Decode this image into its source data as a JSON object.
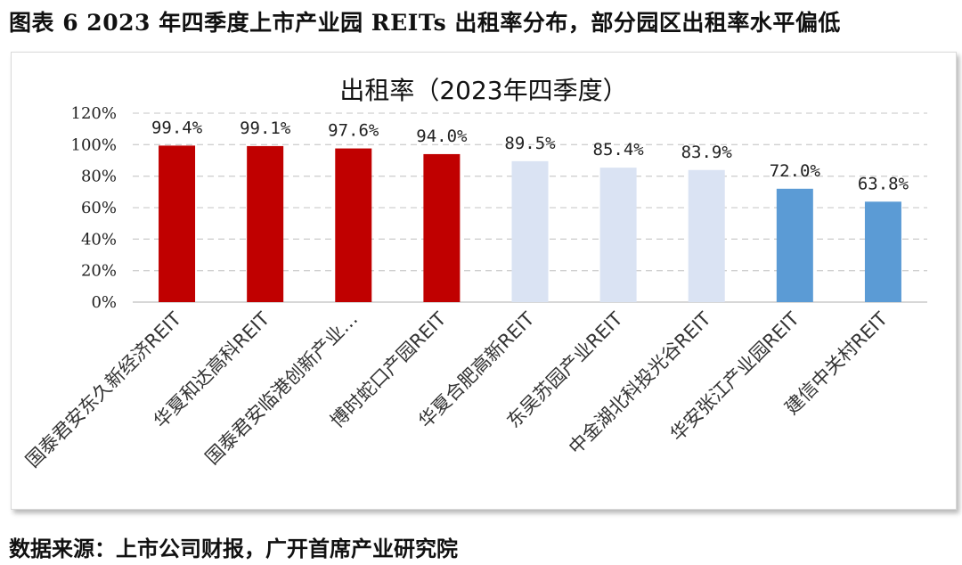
{
  "figure": {
    "caption": "图表 6 2023 年四季度上市产业园 REITs 出租率分布，部分园区出租率水平偏低",
    "source": "数据来源：上市公司财报，广开首席产业研究院"
  },
  "colors": {
    "red": "#c00000",
    "light": "#dae3f3",
    "blue": "#5b9bd5",
    "grid": "#d0d0d0"
  },
  "chart_data": {
    "type": "bar",
    "title": "出租率（2023年四季度）",
    "xlabel": "",
    "ylabel": "",
    "ylim": [
      0,
      120
    ],
    "y_ticks": [
      "0%",
      "20%",
      "40%",
      "60%",
      "80%",
      "100%",
      "120%"
    ],
    "grid": true,
    "categories": [
      "国泰君安东久新经济REIT",
      "华夏和达高科REIT",
      "国泰君安临港创新产业…",
      "博时蛇口产园REIT",
      "华夏合肥高新REIT",
      "东吴苏园产业REIT",
      "中金湖北科投光谷REIT",
      "华安张江产业园REIT",
      "建信中关村REIT"
    ],
    "values": [
      99.4,
      99.1,
      97.6,
      94.0,
      89.5,
      85.4,
      83.9,
      72.0,
      63.8
    ],
    "data_labels": [
      "99.4%",
      "99.1%",
      "97.6%",
      "94.0%",
      "89.5%",
      "85.4%",
      "83.9%",
      "72.0%",
      "63.8%"
    ],
    "bar_colors": [
      "#c00000",
      "#c00000",
      "#c00000",
      "#c00000",
      "#dae3f3",
      "#dae3f3",
      "#dae3f3",
      "#5b9bd5",
      "#5b9bd5"
    ]
  }
}
